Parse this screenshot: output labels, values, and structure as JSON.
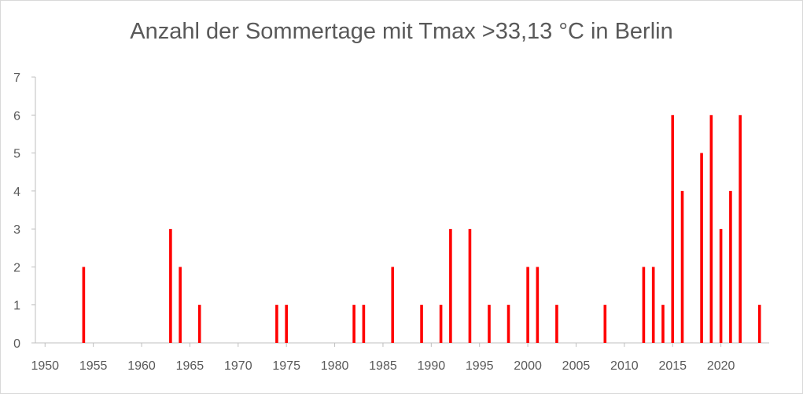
{
  "chart_data": {
    "type": "bar",
    "title": "Anzahl der Sommertage mit Tmax >33,13 °C in Berlin",
    "xlabel": "",
    "ylabel": "",
    "xlim": [
      1949,
      2025
    ],
    "ylim": [
      0,
      7
    ],
    "x_ticks": [
      1950,
      1955,
      1960,
      1965,
      1970,
      1975,
      1980,
      1985,
      1990,
      1995,
      2000,
      2005,
      2010,
      2015,
      2020
    ],
    "y_ticks": [
      0,
      1,
      2,
      3,
      4,
      5,
      6,
      7
    ],
    "grid": false,
    "legend": "none",
    "bar_color": "#ff0000",
    "x": [
      1954,
      1963,
      1964,
      1966,
      1974,
      1975,
      1982,
      1983,
      1986,
      1989,
      1991,
      1992,
      1994,
      1996,
      1998,
      2000,
      2001,
      2003,
      2008,
      2012,
      2013,
      2014,
      2015,
      2016,
      2018,
      2019,
      2020,
      2021,
      2022,
      2024
    ],
    "values": [
      2,
      3,
      2,
      1,
      1,
      1,
      1,
      1,
      2,
      1,
      1,
      3,
      3,
      1,
      1,
      2,
      2,
      1,
      1,
      2,
      2,
      1,
      6,
      4,
      5,
      6,
      3,
      4,
      6,
      1
    ]
  }
}
